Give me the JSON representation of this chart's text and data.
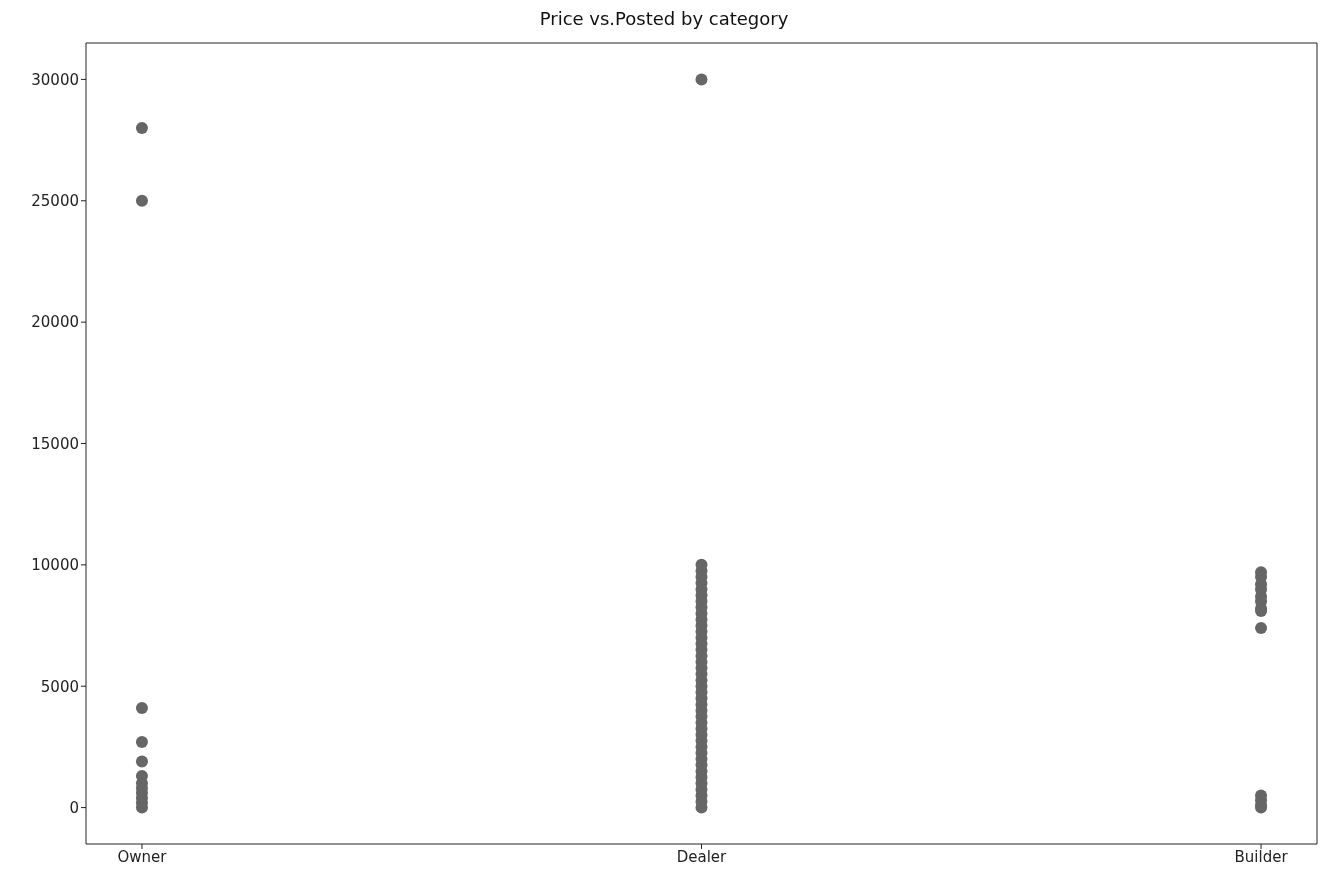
{
  "chart_data": {
    "type": "scatter",
    "title": "Price vs.Posted by category",
    "categories": [
      "Owner",
      "Dealer",
      "Builder"
    ],
    "series": [
      {
        "color": "#666666",
        "x": [
          "Owner",
          "Owner",
          "Owner",
          "Owner",
          "Owner",
          "Owner",
          "Owner",
          "Owner",
          "Owner",
          "Owner",
          "Owner",
          "Owner",
          "Dealer",
          "Dealer",
          "Dealer",
          "Dealer",
          "Dealer",
          "Dealer",
          "Dealer",
          "Dealer",
          "Dealer",
          "Dealer",
          "Dealer",
          "Dealer",
          "Dealer",
          "Dealer",
          "Dealer",
          "Dealer",
          "Dealer",
          "Dealer",
          "Dealer",
          "Dealer",
          "Dealer",
          "Dealer",
          "Dealer",
          "Dealer",
          "Dealer",
          "Dealer",
          "Dealer",
          "Dealer",
          "Dealer",
          "Dealer",
          "Dealer",
          "Dealer",
          "Dealer",
          "Dealer",
          "Dealer",
          "Dealer",
          "Dealer",
          "Dealer",
          "Dealer",
          "Dealer",
          "Dealer",
          "Dealer",
          "Builder",
          "Builder",
          "Builder",
          "Builder",
          "Builder",
          "Builder",
          "Builder",
          "Builder",
          "Builder",
          "Builder",
          "Builder",
          "Builder",
          "Builder"
        ],
        "values": [
          28000,
          25000,
          4100,
          2700,
          1900,
          1300,
          1000,
          800,
          600,
          400,
          200,
          0,
          30000,
          10000,
          9750,
          9500,
          9250,
          9000,
          8750,
          8500,
          8250,
          8000,
          7750,
          7500,
          7250,
          7000,
          6750,
          6500,
          6250,
          6000,
          5750,
          5500,
          5250,
          5000,
          4750,
          4500,
          4250,
          4000,
          3750,
          3500,
          3250,
          3000,
          2750,
          2500,
          2250,
          2000,
          1750,
          1500,
          1250,
          1000,
          750,
          500,
          250,
          0,
          9700,
          9500,
          9200,
          9000,
          8700,
          8500,
          8200,
          8100,
          7400,
          500,
          300,
          100,
          0
        ]
      }
    ],
    "ylim": [
      -1500,
      31500
    ],
    "yticks": [
      0,
      5000,
      10000,
      15000,
      20000,
      25000,
      30000
    ],
    "marker": "circle"
  }
}
